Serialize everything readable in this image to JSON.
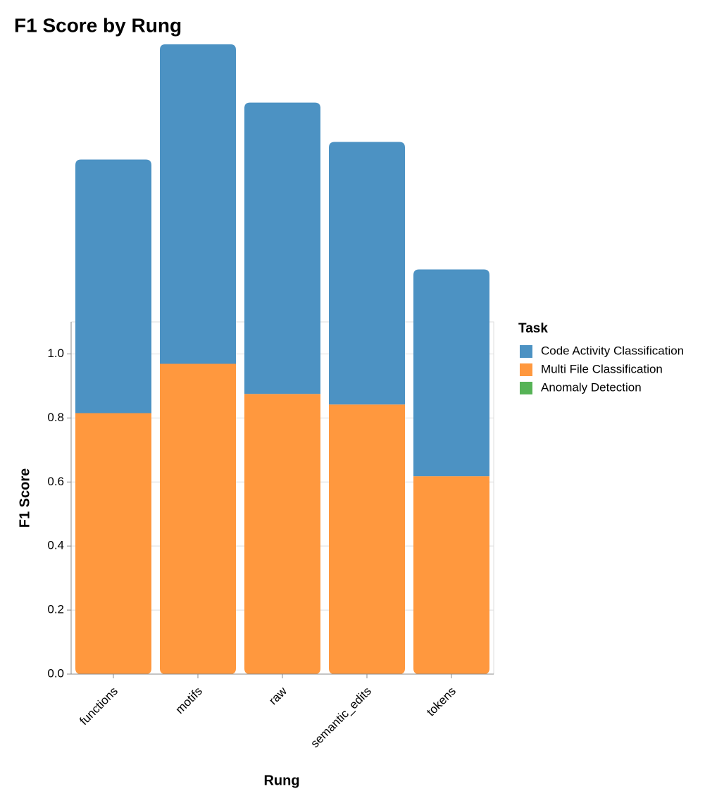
{
  "chart_data": {
    "type": "stacked_bar",
    "title": "F1 Score by Rung",
    "x_label": "Rung",
    "y_label": "F1 Score",
    "legend_title": "Task",
    "categories": [
      "functions",
      "motifs",
      "raw",
      "semantic_edits",
      "tokens"
    ],
    "series": [
      {
        "name": "Code Activity Classification",
        "color": "#4c92c3",
        "values": [
          0.792,
          0.998,
          0.91,
          0.82,
          0.646
        ]
      },
      {
        "name": "Multi File Classification",
        "color": "#ff983e",
        "values": [
          0.815,
          0.969,
          0.875,
          0.842,
          0.618
        ]
      },
      {
        "name": "Anomaly Detection",
        "color": "#56b356",
        "values": [
          null,
          null,
          null,
          null,
          null
        ]
      }
    ],
    "ylim": [
      0,
      1.1
    ],
    "yticks": [
      {
        "value": 0,
        "label": "0.0"
      },
      0.2,
      0.4,
      0.6,
      0.8,
      {
        "value": 1,
        "label": "1.0"
      }
    ],
    "grid": true,
    "legend": "right"
  }
}
